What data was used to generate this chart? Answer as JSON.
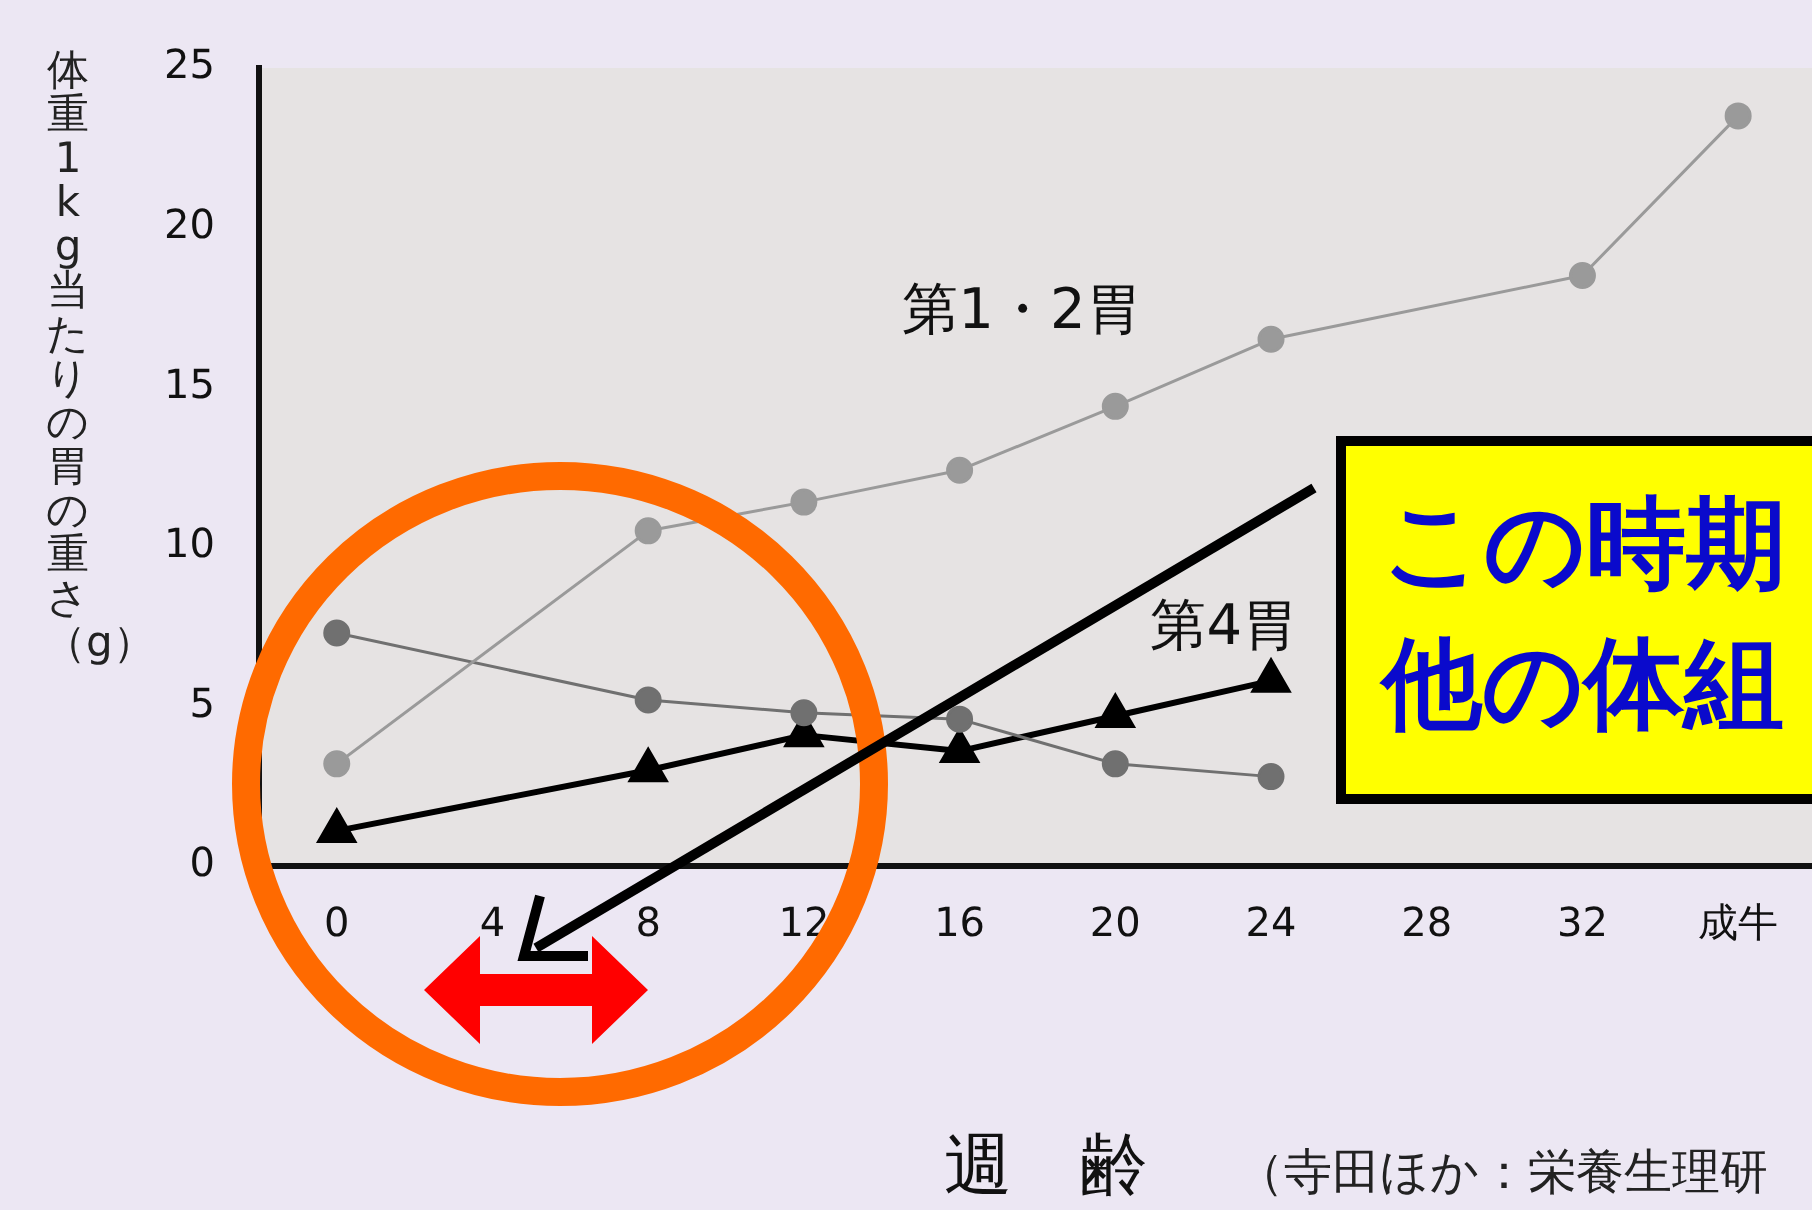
{
  "chart_data": {
    "type": "line",
    "xlabel": "週　齢",
    "ylabel": "体重 1 kg 当たりの胃の重さ（g）",
    "categories": [
      "0",
      "4",
      "8",
      "12",
      "16",
      "20",
      "24",
      "28",
      "32",
      "成牛"
    ],
    "ylim": [
      0,
      25
    ],
    "yticks": [
      0,
      5,
      10,
      15,
      20,
      25
    ],
    "grid": false,
    "legend": false,
    "series": [
      {
        "name": "第1・2胃",
        "color": "#9a9a9a",
        "marker": "circle",
        "values": [
          3.2,
          null,
          10.5,
          11.4,
          12.4,
          14.4,
          16.5,
          null,
          18.5,
          23.5
        ]
      },
      {
        "color": "#707070",
        "marker": "circle",
        "values": [
          7.3,
          null,
          5.2,
          4.8,
          4.6,
          3.2,
          2.8,
          null,
          null,
          null
        ]
      },
      {
        "name": "第4胃",
        "color": "#000000",
        "marker": "triangle",
        "values": [
          1.1,
          null,
          3.0,
          4.1,
          3.6,
          4.7,
          5.8,
          null,
          null,
          null
        ]
      }
    ],
    "annotations": [
      "この時期",
      "他の体組",
      "（寺田ほか：栄養生理研"
    ]
  }
}
